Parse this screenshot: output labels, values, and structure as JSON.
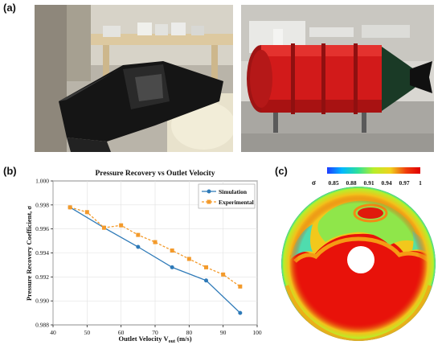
{
  "labels": {
    "a": "(a)",
    "b": "(b)",
    "c": "(c)"
  },
  "photos": [
    {
      "name": "photo-inlet-model",
      "description": "black aerodynamic model on test bench"
    },
    {
      "name": "photo-wind-tunnel",
      "description": "red cylindrical wind tunnel sections"
    }
  ],
  "chart_data": {
    "type": "line",
    "title": "Pressure Recovery vs Outlet Velocity",
    "xlabel": "Outlet Velocity V",
    "xlabel_sub": "out",
    "xlabel_unit": " (m/s)",
    "ylabel": "Pressure Recovery Coefficient, σ",
    "xlim": [
      40,
      100
    ],
    "ylim": [
      0.988,
      1.0
    ],
    "xticks": [
      "40",
      "50",
      "60",
      "70",
      "80",
      "90",
      "100"
    ],
    "yticks": [
      "0.988",
      "0.990",
      "0.992",
      "0.994",
      "0.996",
      "0.998",
      "1.000"
    ],
    "legend_position": "top-right",
    "series": [
      {
        "name": "Simulation",
        "color": "#2e7ab8",
        "style": "solid",
        "marker": "circle",
        "x": [
          45,
          55,
          65,
          75,
          85,
          95
        ],
        "y": [
          0.9978,
          0.9961,
          0.9945,
          0.9928,
          0.9917,
          0.989
        ]
      },
      {
        "name": "Experimental",
        "color": "#f39a2b",
        "style": "dashed",
        "marker": "square",
        "x": [
          45,
          50,
          55,
          60,
          65,
          70,
          75,
          80,
          85,
          90,
          95
        ],
        "y": [
          0.9978,
          0.9974,
          0.9961,
          0.9963,
          0.9955,
          0.9949,
          0.9942,
          0.9935,
          0.9928,
          0.9922,
          0.9912
        ]
      }
    ]
  },
  "contour": {
    "symbol": "σ",
    "colorbar_labels": [
      "0.85",
      "0.88",
      "0.91",
      "0.94",
      "0.97",
      "1"
    ],
    "colors": [
      "#1e3cff",
      "#00b8ff",
      "#2ee09a",
      "#b8ee2a",
      "#f0d21e",
      "#f03c0c",
      "#e00000"
    ]
  }
}
